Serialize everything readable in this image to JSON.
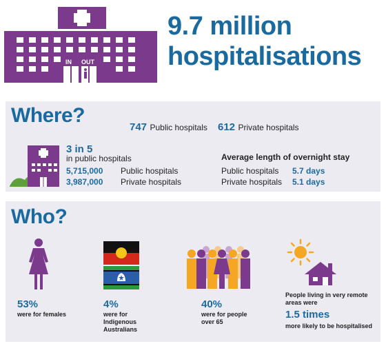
{
  "header": {
    "headline_line1": "9.7 million",
    "headline_line2": "hospitalisations",
    "hospital_sign_in": "IN",
    "hospital_sign_out": "OUT",
    "icon": "hospital-building-icon"
  },
  "where": {
    "title": "Where?",
    "public_count": "747",
    "public_label": "Public hospitals",
    "private_count": "612",
    "private_label": "Private hospitals",
    "ratio": "3 in 5",
    "ratio_sub": "in public hospitals",
    "public_total": "5,715,000",
    "public_total_label": "Public hospitals",
    "private_total": "3,987,000",
    "private_total_label": "Private hospitals",
    "stay_title": "Average length of overnight stay",
    "stay_public_label": "Public hospitals",
    "stay_public_value": "5.7 days",
    "stay_private_label": "Private hospitals",
    "stay_private_value": "5.1 days"
  },
  "who": {
    "title": "Who?",
    "females_pct": "53%",
    "females_label": "were for females",
    "indig_pct": "4%",
    "indig_label_1": "were for",
    "indig_label_2": "Indigenous",
    "indig_label_3": "Australians",
    "over65_pct": "40%",
    "over65_label_1": "were for people",
    "over65_label_2": "over 65",
    "remote_label_1": "People living in very remote",
    "remote_label_2": "areas were",
    "remote_times": "1.5 times",
    "remote_label_3": "more likely to be hospitalised"
  },
  "colors": {
    "purple": "#7b3a8c",
    "blue": "#1b6a9f",
    "orange": "#f5a623",
    "panel": "#ecebf2"
  }
}
